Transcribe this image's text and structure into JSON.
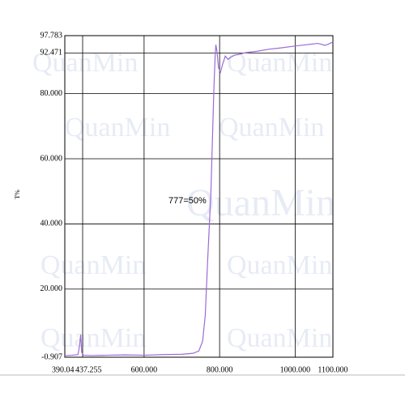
{
  "chart_data": {
    "type": "line",
    "ylabel": "T%",
    "annotation": "777=50%",
    "watermark": "QuanMin",
    "xlim": [
      390.04,
      1100
    ],
    "ylim": [
      -0.907,
      97.783
    ],
    "xticks": [
      390.04,
      437.255,
      {
        "value": 600,
        "label": "600.000"
      },
      {
        "value": 800,
        "label": "800.000"
      },
      {
        "value": 1000,
        "label": "1000.000"
      },
      {
        "value": 1100,
        "label": "1100.000"
      }
    ],
    "yticks": [
      -0.907,
      {
        "value": 20,
        "label": "20.000"
      },
      {
        "value": 40,
        "label": "40.000"
      },
      {
        "value": 60,
        "label": "60.000"
      },
      {
        "value": 80,
        "label": "80.000"
      },
      92.471,
      97.783
    ],
    "grid": true,
    "series": [
      {
        "name": "T%",
        "color": "#9b6bd6",
        "x": [
          390.04,
          410,
          425,
          429,
          432,
          435,
          440,
          460,
          500,
          550,
          600,
          650,
          700,
          730,
          745,
          755,
          762,
          768,
          773,
          777,
          781,
          785,
          788,
          790,
          793,
          797,
          802,
          808,
          815,
          822,
          830,
          840,
          850,
          870,
          900,
          930,
          960,
          1000,
          1030,
          1060,
          1080,
          1100
        ],
        "values": [
          -0.4,
          -0.3,
          -0.1,
          2.5,
          6.0,
          0.5,
          -0.3,
          -0.4,
          -0.3,
          -0.2,
          -0.3,
          -0.1,
          0.0,
          0.3,
          1.0,
          4.0,
          12.0,
          28.0,
          40.0,
          50.0,
          66.0,
          82.0,
          91.0,
          95.0,
          93.0,
          88.0,
          86.5,
          89.0,
          91.5,
          90.5,
          91.2,
          91.8,
          92.0,
          92.6,
          93.0,
          93.6,
          94.0,
          94.6,
          95.0,
          95.4,
          94.8,
          95.8
        ]
      }
    ]
  }
}
